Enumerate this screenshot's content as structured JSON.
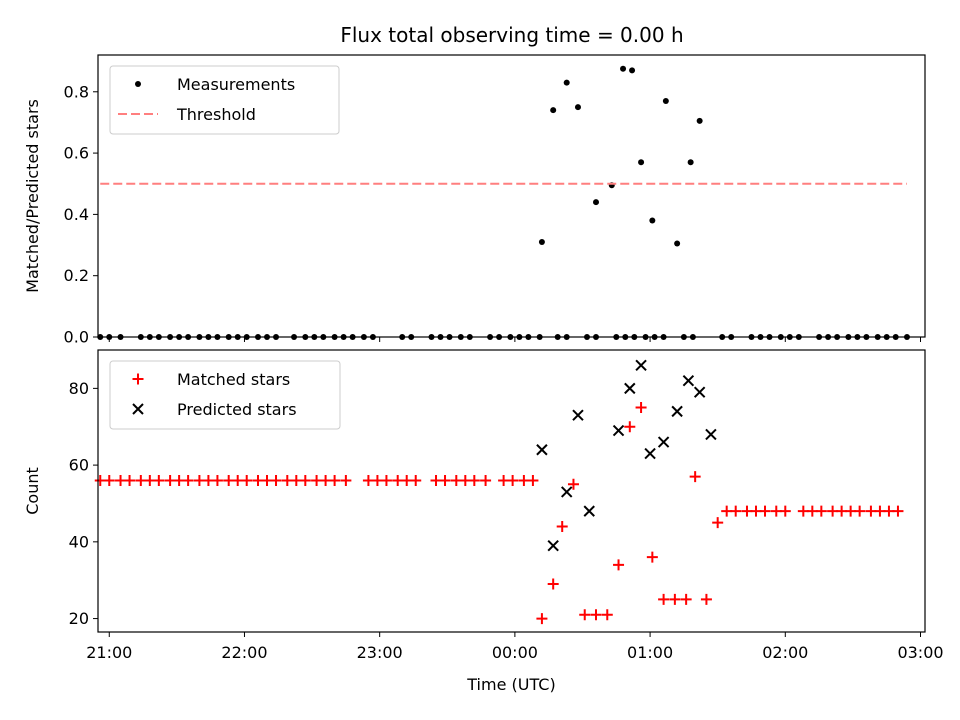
{
  "title": "Flux total observing time = 0.00 h",
  "chart_data": [
    {
      "type": "scatter",
      "xlabel": "",
      "ylabel": "Matched/Predicted stars",
      "xlim": [
        "20:55",
        "03:02"
      ],
      "ylim": [
        0,
        0.92
      ],
      "yticks": [
        0.0,
        0.2,
        0.4,
        0.6,
        0.8
      ],
      "ytick_labels": [
        "0.0",
        "0.2",
        "0.4",
        "0.6",
        "0.8"
      ],
      "legend": "upper-left",
      "series": [
        {
          "name": "Measurements",
          "marker": "dot",
          "color": "#000000",
          "x": [
            "20:56",
            "21:00",
            "21:05",
            "21:14",
            "21:18",
            "21:22",
            "21:27",
            "21:31",
            "21:35",
            "21:40",
            "21:44",
            "21:48",
            "21:53",
            "21:57",
            "22:01",
            "22:06",
            "22:10",
            "22:14",
            "22:22",
            "22:27",
            "22:31",
            "22:35",
            "22:40",
            "22:44",
            "22:48",
            "22:53",
            "22:57",
            "23:10",
            "23:14",
            "23:23",
            "23:27",
            "23:31",
            "23:36",
            "23:40",
            "23:49",
            "23:53",
            "23:58",
            "00:02",
            "00:06",
            "00:11",
            "00:19",
            "00:23",
            "00:32",
            "00:36",
            "00:45",
            "00:49",
            "00:53",
            "00:58",
            "01:02",
            "01:06",
            "01:15",
            "01:19",
            "01:32",
            "01:36",
            "01:45",
            "01:49",
            "01:53",
            "01:58",
            "02:02",
            "02:06",
            "02:15",
            "02:19",
            "02:23",
            "02:28",
            "02:32",
            "02:36",
            "02:41",
            "02:45",
            "02:49",
            "02:54"
          ],
          "y": [
            0,
            0,
            0,
            0,
            0,
            0,
            0,
            0,
            0,
            0,
            0,
            0,
            0,
            0,
            0,
            0,
            0,
            0,
            0,
            0,
            0,
            0,
            0,
            0,
            0,
            0,
            0,
            0,
            0,
            0,
            0,
            0,
            0,
            0,
            0,
            0,
            0,
            0,
            0,
            0,
            0,
            0,
            0,
            0,
            0,
            0,
            0,
            0,
            0,
            0,
            0,
            0,
            0,
            0,
            0,
            0,
            0,
            0,
            0,
            0,
            0,
            0,
            0,
            0,
            0,
            0,
            0,
            0,
            0,
            0
          ]
        },
        {
          "name": "Measurements",
          "marker": "dot",
          "color": "#000000",
          "x": [
            "00:12",
            "00:17",
            "00:23",
            "00:28",
            "00:36",
            "00:43",
            "00:48",
            "00:52",
            "00:56",
            "01:01",
            "01:07",
            "01:12",
            "01:18",
            "01:22"
          ],
          "y": [
            0.31,
            0.74,
            0.83,
            0.75,
            0.44,
            0.495,
            0.875,
            0.87,
            0.57,
            0.38,
            0.77,
            0.305,
            0.57,
            0.705
          ]
        },
        {
          "name": "Threshold",
          "marker": "dashed-line",
          "color": "#ff7f7f",
          "x": [
            "20:56",
            "02:54"
          ],
          "y": [
            0.5,
            0.5
          ]
        }
      ]
    },
    {
      "type": "scatter",
      "xlabel": "Time (UTC)",
      "ylabel": "Count",
      "xlim": [
        "20:55",
        "03:02"
      ],
      "ylim": [
        16.5,
        90
      ],
      "xticks": [
        "21:00",
        "22:00",
        "23:00",
        "00:00",
        "01:00",
        "02:00",
        "03:00"
      ],
      "yticks": [
        20,
        40,
        60,
        80
      ],
      "ytick_labels": [
        "20",
        "40",
        "60",
        "80"
      ],
      "legend": "upper-left",
      "series": [
        {
          "name": "Matched stars",
          "marker": "plus",
          "color": "#ff0000",
          "x": [
            "20:56",
            "21:00",
            "21:05",
            "21:09",
            "21:14",
            "21:18",
            "21:22",
            "21:27",
            "21:31",
            "21:35",
            "21:40",
            "21:44",
            "21:48",
            "21:53",
            "21:57",
            "22:01",
            "22:06",
            "22:10",
            "22:14",
            "22:19",
            "22:23",
            "22:27",
            "22:32",
            "22:36",
            "22:40",
            "22:45",
            "22:55",
            "22:59",
            "23:03",
            "23:08",
            "23:12",
            "23:16",
            "23:25",
            "23:29",
            "23:34",
            "23:38",
            "23:42",
            "23:47",
            "23:55",
            "23:59",
            "00:04",
            "00:08",
            "00:12",
            "00:17",
            "00:21",
            "00:26",
            "00:31",
            "00:36",
            "00:41",
            "00:46",
            "00:51",
            "00:56",
            "01:01",
            "01:06",
            "01:11",
            "01:16",
            "01:20",
            "01:25",
            "01:30",
            "01:34",
            "01:38",
            "01:43",
            "01:47",
            "01:51",
            "01:56",
            "02:00",
            "02:08",
            "02:12",
            "02:16",
            "02:21",
            "02:25",
            "02:29",
            "02:33",
            "02:38",
            "02:42",
            "02:46",
            "02:50"
          ],
          "y": [
            56,
            56,
            56,
            56,
            56,
            56,
            56,
            56,
            56,
            56,
            56,
            56,
            56,
            56,
            56,
            56,
            56,
            56,
            56,
            56,
            56,
            56,
            56,
            56,
            56,
            56,
            56,
            56,
            56,
            56,
            56,
            56,
            56,
            56,
            56,
            56,
            56,
            56,
            56,
            56,
            56,
            56,
            20,
            29,
            44,
            55,
            21,
            21,
            21,
            34,
            70,
            75,
            36,
            25,
            25,
            25,
            57,
            25,
            45,
            48,
            48,
            48,
            48,
            48,
            48,
            48,
            48,
            48,
            48,
            48,
            48,
            48,
            48,
            48,
            48,
            48,
            48
          ]
        },
        {
          "name": "Predicted stars",
          "marker": "x",
          "color": "#000000",
          "x": [
            "00:12",
            "00:17",
            "00:23",
            "00:28",
            "00:33",
            "00:46",
            "00:51",
            "00:56",
            "01:00",
            "01:06",
            "01:12",
            "01:17",
            "01:22",
            "01:27"
          ],
          "y": [
            64,
            39,
            53,
            73,
            48,
            69,
            80,
            86,
            63,
            66,
            74,
            82,
            79,
            68
          ]
        }
      ]
    }
  ]
}
